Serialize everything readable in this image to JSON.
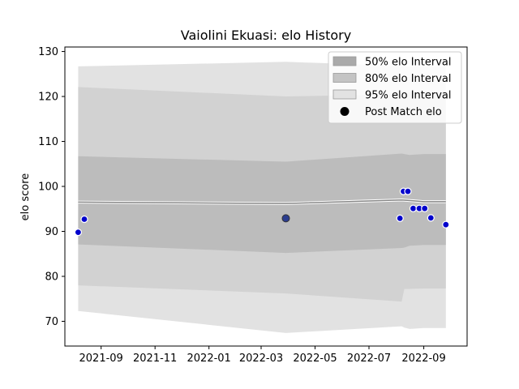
{
  "chart_data": {
    "type": "line",
    "title": "Vaiolini Ekuasi: elo History",
    "xlabel": "",
    "ylabel": "elo score",
    "xlim": [
      "2021-07-22",
      "2022-10-20"
    ],
    "ylim": [
      64.5,
      131
    ],
    "x_ticks": [
      "2021-09-01",
      "2021-11-01",
      "2022-01-01",
      "2022-03-01",
      "2022-05-01",
      "2022-07-01",
      "2022-09-01"
    ],
    "x_tick_labels": [
      "2021-09",
      "2021-11",
      "2022-01",
      "2022-03",
      "2022-05",
      "2022-07",
      "2022-09"
    ],
    "y_ticks": [
      70,
      80,
      90,
      100,
      110,
      120,
      130
    ],
    "legend_position": "top-right",
    "legend": [
      {
        "label": "50% elo Interval",
        "color": "#aaaaaa"
      },
      {
        "label": "80% elo Interval",
        "color": "#c4c4c4"
      },
      {
        "label": "95% elo Interval",
        "color": "#e2e2e2"
      },
      {
        "label": "Post Match elo",
        "color": "#000000"
      }
    ],
    "mean_line": {
      "x": [
        "2021-08-06",
        "2022-03-29",
        "2022-08-07",
        "2022-08-20",
        "2022-09-01",
        "2022-09-26"
      ],
      "y": [
        96.5,
        96.2,
        97.0,
        96.8,
        96.6,
        96.6
      ]
    },
    "bands": [
      {
        "name": "95% elo Interval",
        "x": [
          "2021-08-06",
          "2022-03-29",
          "2022-08-07",
          "2022-08-10",
          "2022-08-16",
          "2022-09-01",
          "2022-09-26"
        ],
        "upper": [
          126.7,
          127.7,
          126.8,
          126.7,
          126.6,
          126.6,
          126.6
        ],
        "lower": [
          72.3,
          67.4,
          68.9,
          68.6,
          68.3,
          68.5,
          68.5
        ]
      },
      {
        "name": "80% elo Interval",
        "x": [
          "2021-08-06",
          "2022-03-29",
          "2022-08-07",
          "2022-08-10",
          "2022-08-16",
          "2022-09-01",
          "2022-09-26"
        ],
        "upper": [
          122.1,
          120.0,
          120.5,
          120.7,
          120.9,
          121.0,
          121.0
        ],
        "lower": [
          78.0,
          76.2,
          74.4,
          77.2,
          77.2,
          77.3,
          77.3
        ]
      },
      {
        "name": "50% elo Interval",
        "x": [
          "2021-08-06",
          "2022-03-29",
          "2022-08-07",
          "2022-08-10",
          "2022-08-16",
          "2022-09-01",
          "2022-09-26"
        ],
        "upper": [
          106.7,
          105.5,
          107.3,
          107.2,
          107.0,
          107.2,
          107.2
        ],
        "lower": [
          87.1,
          85.2,
          86.3,
          86.4,
          86.8,
          87.0,
          87.0
        ]
      }
    ],
    "points": [
      {
        "x": "2021-08-06",
        "y": 89.8
      },
      {
        "x": "2021-08-13",
        "y": 92.7
      },
      {
        "x": "2022-03-29",
        "y": 92.9,
        "highlight": true
      },
      {
        "x": "2022-08-05",
        "y": 92.9
      },
      {
        "x": "2022-08-09",
        "y": 98.9
      },
      {
        "x": "2022-08-14",
        "y": 98.9
      },
      {
        "x": "2022-08-20",
        "y": 95.1
      },
      {
        "x": "2022-08-27",
        "y": 95.1
      },
      {
        "x": "2022-09-02",
        "y": 95.1
      },
      {
        "x": "2022-09-09",
        "y": 93.0
      },
      {
        "x": "2022-09-26",
        "y": 91.5
      }
    ]
  }
}
